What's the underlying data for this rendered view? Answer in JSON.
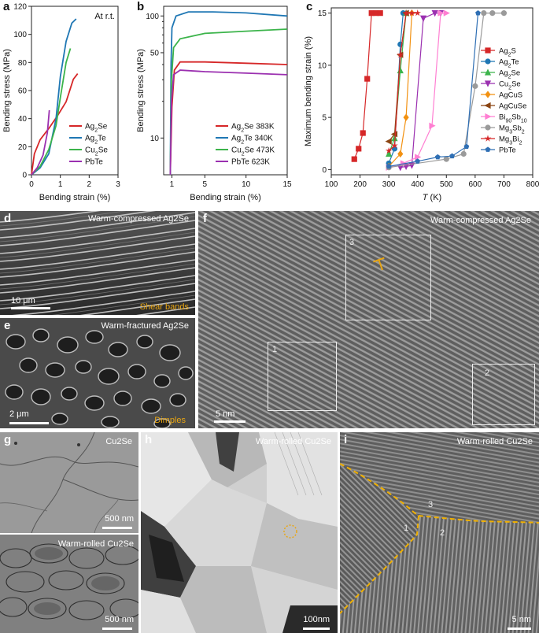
{
  "colors": {
    "red": "#d62728",
    "blue": "#1f77b4",
    "green": "#3cb44b",
    "purple": "#9b30b0",
    "orange": "#f29111",
    "brown": "#8b4513",
    "pink": "#ff7fd2",
    "gray": "#9a9a9a",
    "steel": "#2f6fb4"
  },
  "panels": {
    "a": {
      "label": "a",
      "note": "At r.t."
    },
    "b": {
      "label": "b"
    },
    "c": {
      "label": "c"
    },
    "d": {
      "label": "d",
      "caption": "Warm-compressed Ag2Se",
      "scale": "10 μm",
      "note": "Shear bands"
    },
    "e": {
      "label": "e",
      "caption": "Warm-fractured Ag2Se",
      "scale": "2 μm",
      "note": "Dimples"
    },
    "f": {
      "label": "f",
      "caption": "Warm-compressed Ag2Se",
      "scale": "5 nm",
      "box1": "1",
      "box2": "2",
      "box3": "3"
    },
    "g": {
      "label": "g",
      "caption_top": "Cu2Se",
      "scale_top": "500 nm",
      "caption_bottom": "Warm-rolled Cu2Se",
      "scale_bottom": "500 nm"
    },
    "h": {
      "label": "h",
      "caption": "Warm-rolled Cu2Se",
      "scale": "100nm"
    },
    "i": {
      "label": "i",
      "caption": "Warm-rolled Cu2Se",
      "scale": "5 nm",
      "n1": "1",
      "n2": "2",
      "n3": "3"
    }
  },
  "chart_data": [
    {
      "type": "line",
      "xlabel": "Bending strain (%)",
      "ylabel": "Bending stress (MPa)",
      "xlim": [
        0,
        3
      ],
      "ylim": [
        0,
        120
      ],
      "xticks": [
        "0",
        "1",
        "2",
        "3"
      ],
      "yticks": [
        "0",
        "20",
        "40",
        "60",
        "80",
        "100",
        "120"
      ],
      "series": [
        {
          "name": "Ag2Se",
          "color": "#d62728",
          "x": [
            0,
            0.1,
            0.3,
            0.6,
            0.9,
            1.2,
            1.45,
            1.6
          ],
          "y": [
            0,
            15,
            25,
            33,
            42,
            52,
            68,
            72
          ]
        },
        {
          "name": "Ag2Te",
          "color": "#1f77b4",
          "x": [
            0,
            0.3,
            0.6,
            0.85,
            1.0,
            1.2,
            1.4,
            1.55
          ],
          "y": [
            0,
            5,
            15,
            40,
            70,
            95,
            108,
            111
          ]
        },
        {
          "name": "Cu2Se",
          "color": "#3cb44b",
          "x": [
            0,
            0.3,
            0.6,
            0.85,
            1.0,
            1.2,
            1.35
          ],
          "y": [
            0,
            6,
            18,
            35,
            55,
            80,
            90
          ]
        },
        {
          "name": "PbTe",
          "color": "#9b30b0",
          "x": [
            0,
            0.2,
            0.4,
            0.55,
            0.62
          ],
          "y": [
            0,
            5,
            14,
            30,
            46
          ]
        }
      ]
    },
    {
      "type": "line",
      "xlabel": "Bending strain (%)",
      "ylabel": "Bending stress (MPa)",
      "yscale": "log",
      "xlim": [
        0,
        15
      ],
      "ylim": [
        5,
        120
      ],
      "xticks": [
        "1",
        "5",
        "10",
        "15"
      ],
      "yticks": [
        "10",
        "50",
        "100"
      ],
      "series": [
        {
          "name": "Ag2Se 383K",
          "color": "#d62728",
          "x": [
            0.8,
            1.0,
            1.3,
            2,
            5,
            10,
            15
          ],
          "y": [
            5,
            18,
            36,
            42,
            42,
            41,
            40
          ]
        },
        {
          "name": "Ag2Te 340K",
          "color": "#1f77b4",
          "x": [
            0.8,
            0.9,
            1.0,
            1.5,
            3,
            6,
            10,
            15
          ],
          "y": [
            5,
            40,
            80,
            100,
            108,
            108,
            106,
            100
          ]
        },
        {
          "name": "Cu2Se 473K",
          "color": "#3cb44b",
          "x": [
            0.8,
            0.95,
            1.2,
            2,
            5,
            10,
            15
          ],
          "y": [
            5,
            30,
            55,
            65,
            72,
            75,
            78
          ]
        },
        {
          "name": "PbTe 623K",
          "color": "#9b30b0",
          "x": [
            0.8,
            0.95,
            1.2,
            2,
            5,
            10,
            15
          ],
          "y": [
            5,
            20,
            33,
            36,
            35,
            34,
            33
          ]
        }
      ]
    },
    {
      "type": "line",
      "xlabel": "T (K)",
      "ylabel": "Maximum bending strain (%)",
      "xlim": [
        100,
        800
      ],
      "ylim": [
        -0.5,
        15.5
      ],
      "xticks": [
        "100",
        "200",
        "300",
        "400",
        "500",
        "600",
        "700",
        "800"
      ],
      "yticks": [
        "0",
        "5",
        "10",
        "15"
      ],
      "series": [
        {
          "name": "Ag2S",
          "color": "#d62728",
          "marker": "square",
          "x": [
            180,
            195,
            210,
            225,
            240,
            255,
            270
          ],
          "y": [
            1,
            2,
            3.5,
            8.7,
            15,
            15,
            15
          ]
        },
        {
          "name": "Ag2Te",
          "color": "#1f77b4",
          "marker": "circle",
          "x": [
            300,
            320,
            340,
            350
          ],
          "y": [
            0.6,
            2,
            12,
            15
          ]
        },
        {
          "name": "Ag2Se",
          "color": "#3cb44b",
          "marker": "triangle",
          "x": [
            300,
            320,
            340,
            360
          ],
          "y": [
            1.5,
            3,
            9.5,
            15
          ]
        },
        {
          "name": "Cu2Se",
          "color": "#9b30b0",
          "marker": "tri-down",
          "x": [
            340,
            360,
            380,
            420,
            460,
            480
          ],
          "y": [
            0.2,
            0.3,
            0.4,
            14.5,
            15,
            15
          ]
        },
        {
          "name": "AgCuS",
          "color": "#f29111",
          "marker": "diamond",
          "x": [
            300,
            340,
            360,
            380
          ],
          "y": [
            0.3,
            1.5,
            5,
            15
          ]
        },
        {
          "name": "AgCuSe",
          "color": "#8b4513",
          "marker": "tri-left",
          "x": [
            300,
            320,
            340,
            360
          ],
          "y": [
            2.7,
            3.4,
            11,
            15
          ]
        },
        {
          "name": "Bi90Sb10",
          "color": "#ff7fd2",
          "marker": "tri-right",
          "x": [
            300,
            350,
            400,
            450,
            480,
            500
          ],
          "y": [
            0.2,
            0.6,
            1.2,
            4.2,
            15,
            15
          ]
        },
        {
          "name": "Mg3Sb2",
          "color": "#9a9a9a",
          "marker": "circle",
          "x": [
            300,
            500,
            560,
            600,
            630,
            660,
            700
          ],
          "y": [
            0.2,
            1,
            1.5,
            8,
            15,
            15,
            15
          ]
        },
        {
          "name": "Mg3Bi2",
          "color": "#d62728",
          "marker": "star",
          "x": [
            300,
            320,
            340,
            360,
            380,
            400
          ],
          "y": [
            1.8,
            2.3,
            11,
            15,
            15,
            15
          ]
        },
        {
          "name": "PbTe",
          "color": "#2f6fb4",
          "marker": "pentagon",
          "x": [
            300,
            400,
            470,
            520,
            570,
            610
          ],
          "y": [
            0.3,
            0.8,
            1.2,
            1.3,
            2.2,
            15
          ]
        }
      ]
    }
  ]
}
